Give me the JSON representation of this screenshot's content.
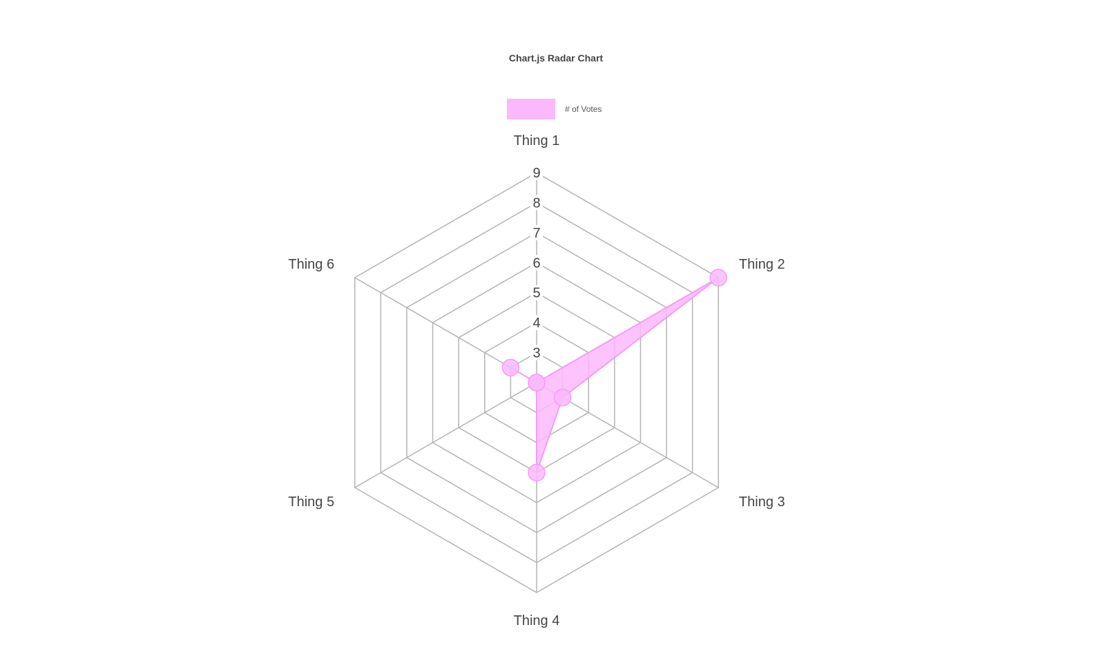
{
  "chart_data": {
    "type": "radar",
    "title": "Chart.js Radar Chart",
    "categories": [
      "Thing 1",
      "Thing 2",
      "Thing 3",
      "Thing 4",
      "Thing 5",
      "Thing 6"
    ],
    "series": [
      {
        "name": "# of Votes",
        "values": [
          2,
          9,
          3,
          5,
          2,
          3
        ],
        "color": "#fbb8fc",
        "border_color": "#f49cf6"
      }
    ],
    "r_ticks": [
      "3",
      "4",
      "5",
      "6",
      "7",
      "8",
      "9"
    ],
    "rlim": [
      2,
      9
    ],
    "grid": true,
    "legend": "top"
  }
}
